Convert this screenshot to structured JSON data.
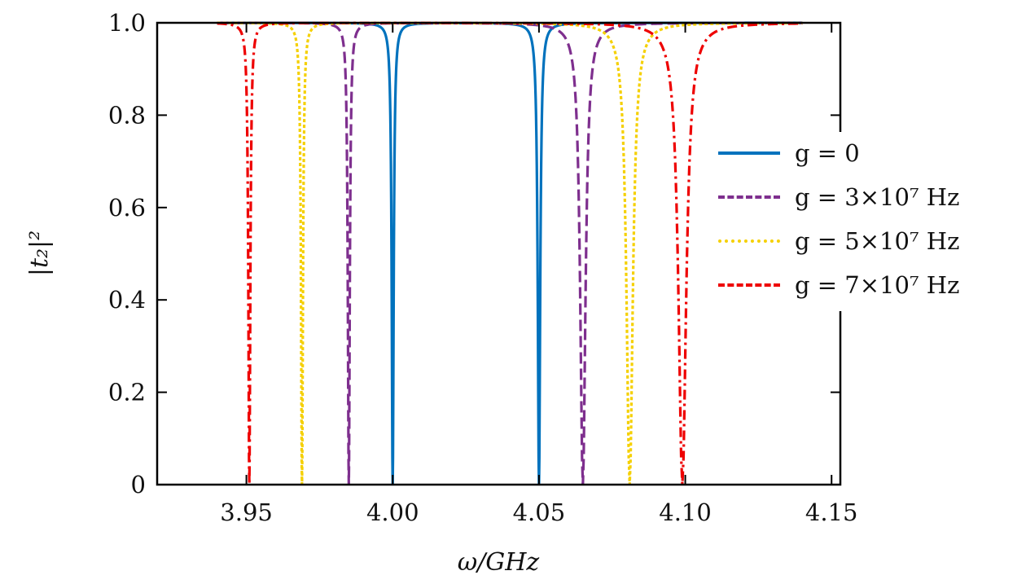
{
  "chart_data": {
    "type": "line",
    "title": "",
    "xlabel": "ω/GHz",
    "ylabel": "|t₂|²",
    "xlim": [
      3.9195,
      4.153
    ],
    "ylim": [
      0,
      1.0
    ],
    "x_range_of_curves": [
      3.94,
      4.14
    ],
    "xticks": [
      3.95,
      4.0,
      4.05,
      4.1,
      4.15
    ],
    "xtick_labels": [
      "3.95",
      "4.00",
      "4.05",
      "4.10",
      "4.15"
    ],
    "yticks": [
      0,
      0.2,
      0.4,
      0.6,
      0.8,
      1.0
    ],
    "ytick_labels": [
      "0",
      "0.2",
      "0.4",
      "0.6",
      "0.8",
      "1.0"
    ],
    "grid": false,
    "legend_position": "right",
    "series": [
      {
        "name": "g = 0",
        "label": "g = 0",
        "color": "#0072BD",
        "dash": "solid",
        "dips": [
          {
            "center": 4.0,
            "width": 0.0004
          },
          {
            "center": 4.05,
            "width": 0.0005
          }
        ]
      },
      {
        "name": "g = 3×10^7 Hz",
        "label": "g = 3×10⁷ Hz",
        "color": "#7E2F8E",
        "dash": "dashed",
        "dips": [
          {
            "center": 3.985,
            "width": 0.0004
          },
          {
            "center": 4.065,
            "width": 0.0011
          }
        ]
      },
      {
        "name": "g = 5×10^7 Hz",
        "label": "g = 5×10⁷ Hz",
        "color": "#F5D000",
        "dash": "dotted",
        "dips": [
          {
            "center": 3.969,
            "width": 0.0004
          },
          {
            "center": 4.081,
            "width": 0.0013
          }
        ]
      },
      {
        "name": "g = 7×10^7 Hz",
        "label": "g = 7×10⁷ Hz",
        "color": "#EE0000",
        "dash": "dashdot",
        "dips": [
          {
            "center": 3.951,
            "width": 0.0004
          },
          {
            "center": 4.099,
            "width": 0.0016
          }
        ]
      }
    ]
  }
}
